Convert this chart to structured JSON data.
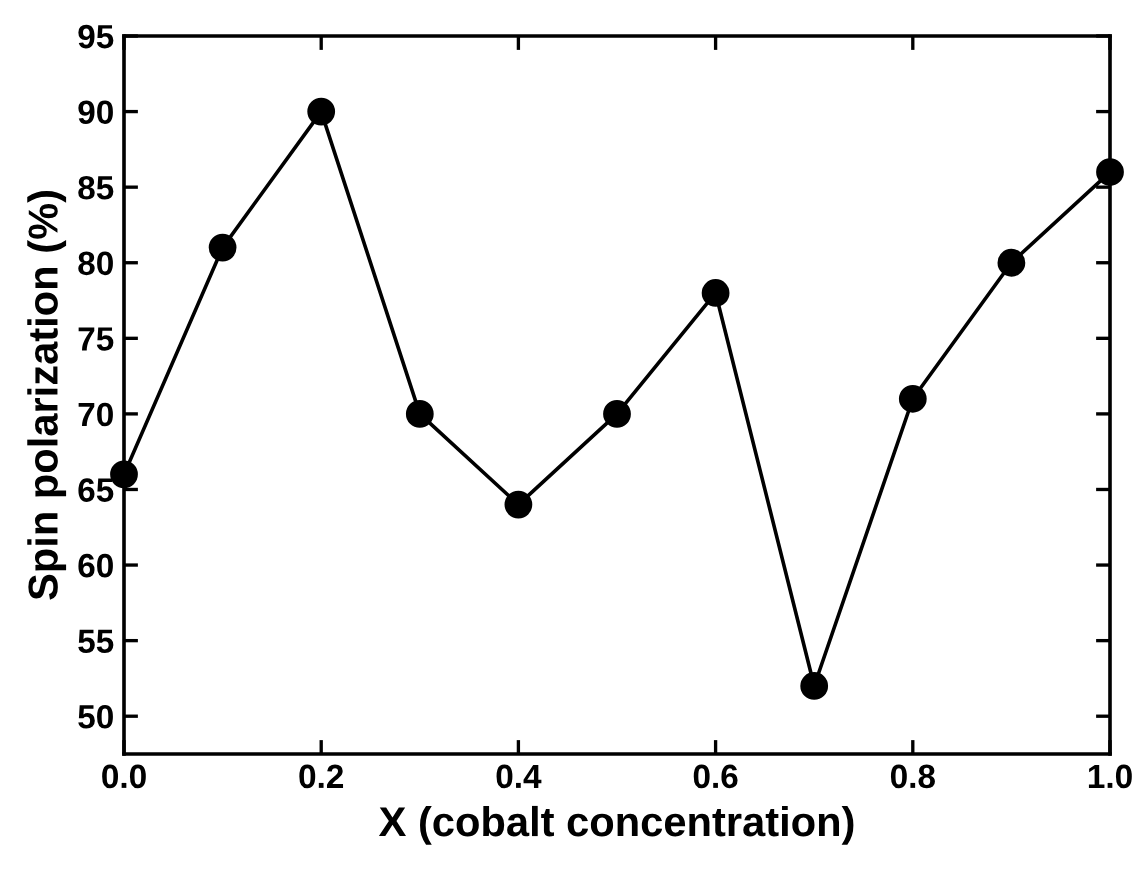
{
  "chart_data": {
    "type": "line",
    "xlabel": "X (cobalt concentration)",
    "ylabel": "Spin polarization (%)",
    "x": [
      0.0,
      0.1,
      0.2,
      0.3,
      0.4,
      0.5,
      0.6,
      0.7,
      0.8,
      0.9,
      1.0
    ],
    "series": [
      {
        "color": "#000000",
        "values": [
          66,
          81,
          90,
          70,
          64,
          70,
          78,
          52,
          71,
          80,
          86
        ]
      }
    ],
    "xlim": [
      0,
      1
    ],
    "xticks": [
      {
        "value": 0,
        "label": "0.0"
      },
      {
        "value": 0.2,
        "label": "0.2"
      },
      {
        "value": 0.4,
        "label": "0.4"
      },
      {
        "value": 0.6,
        "label": "0.6"
      },
      {
        "value": 0.8,
        "label": "0.8"
      },
      {
        "value": 1,
        "label": "1.0"
      }
    ],
    "ylim": [
      47.5,
      95
    ],
    "yticks": [
      50,
      55,
      60,
      65,
      70,
      75,
      80,
      85,
      90,
      95
    ],
    "marker": "circle",
    "line_style": "solid",
    "grid": false,
    "legend": false
  }
}
